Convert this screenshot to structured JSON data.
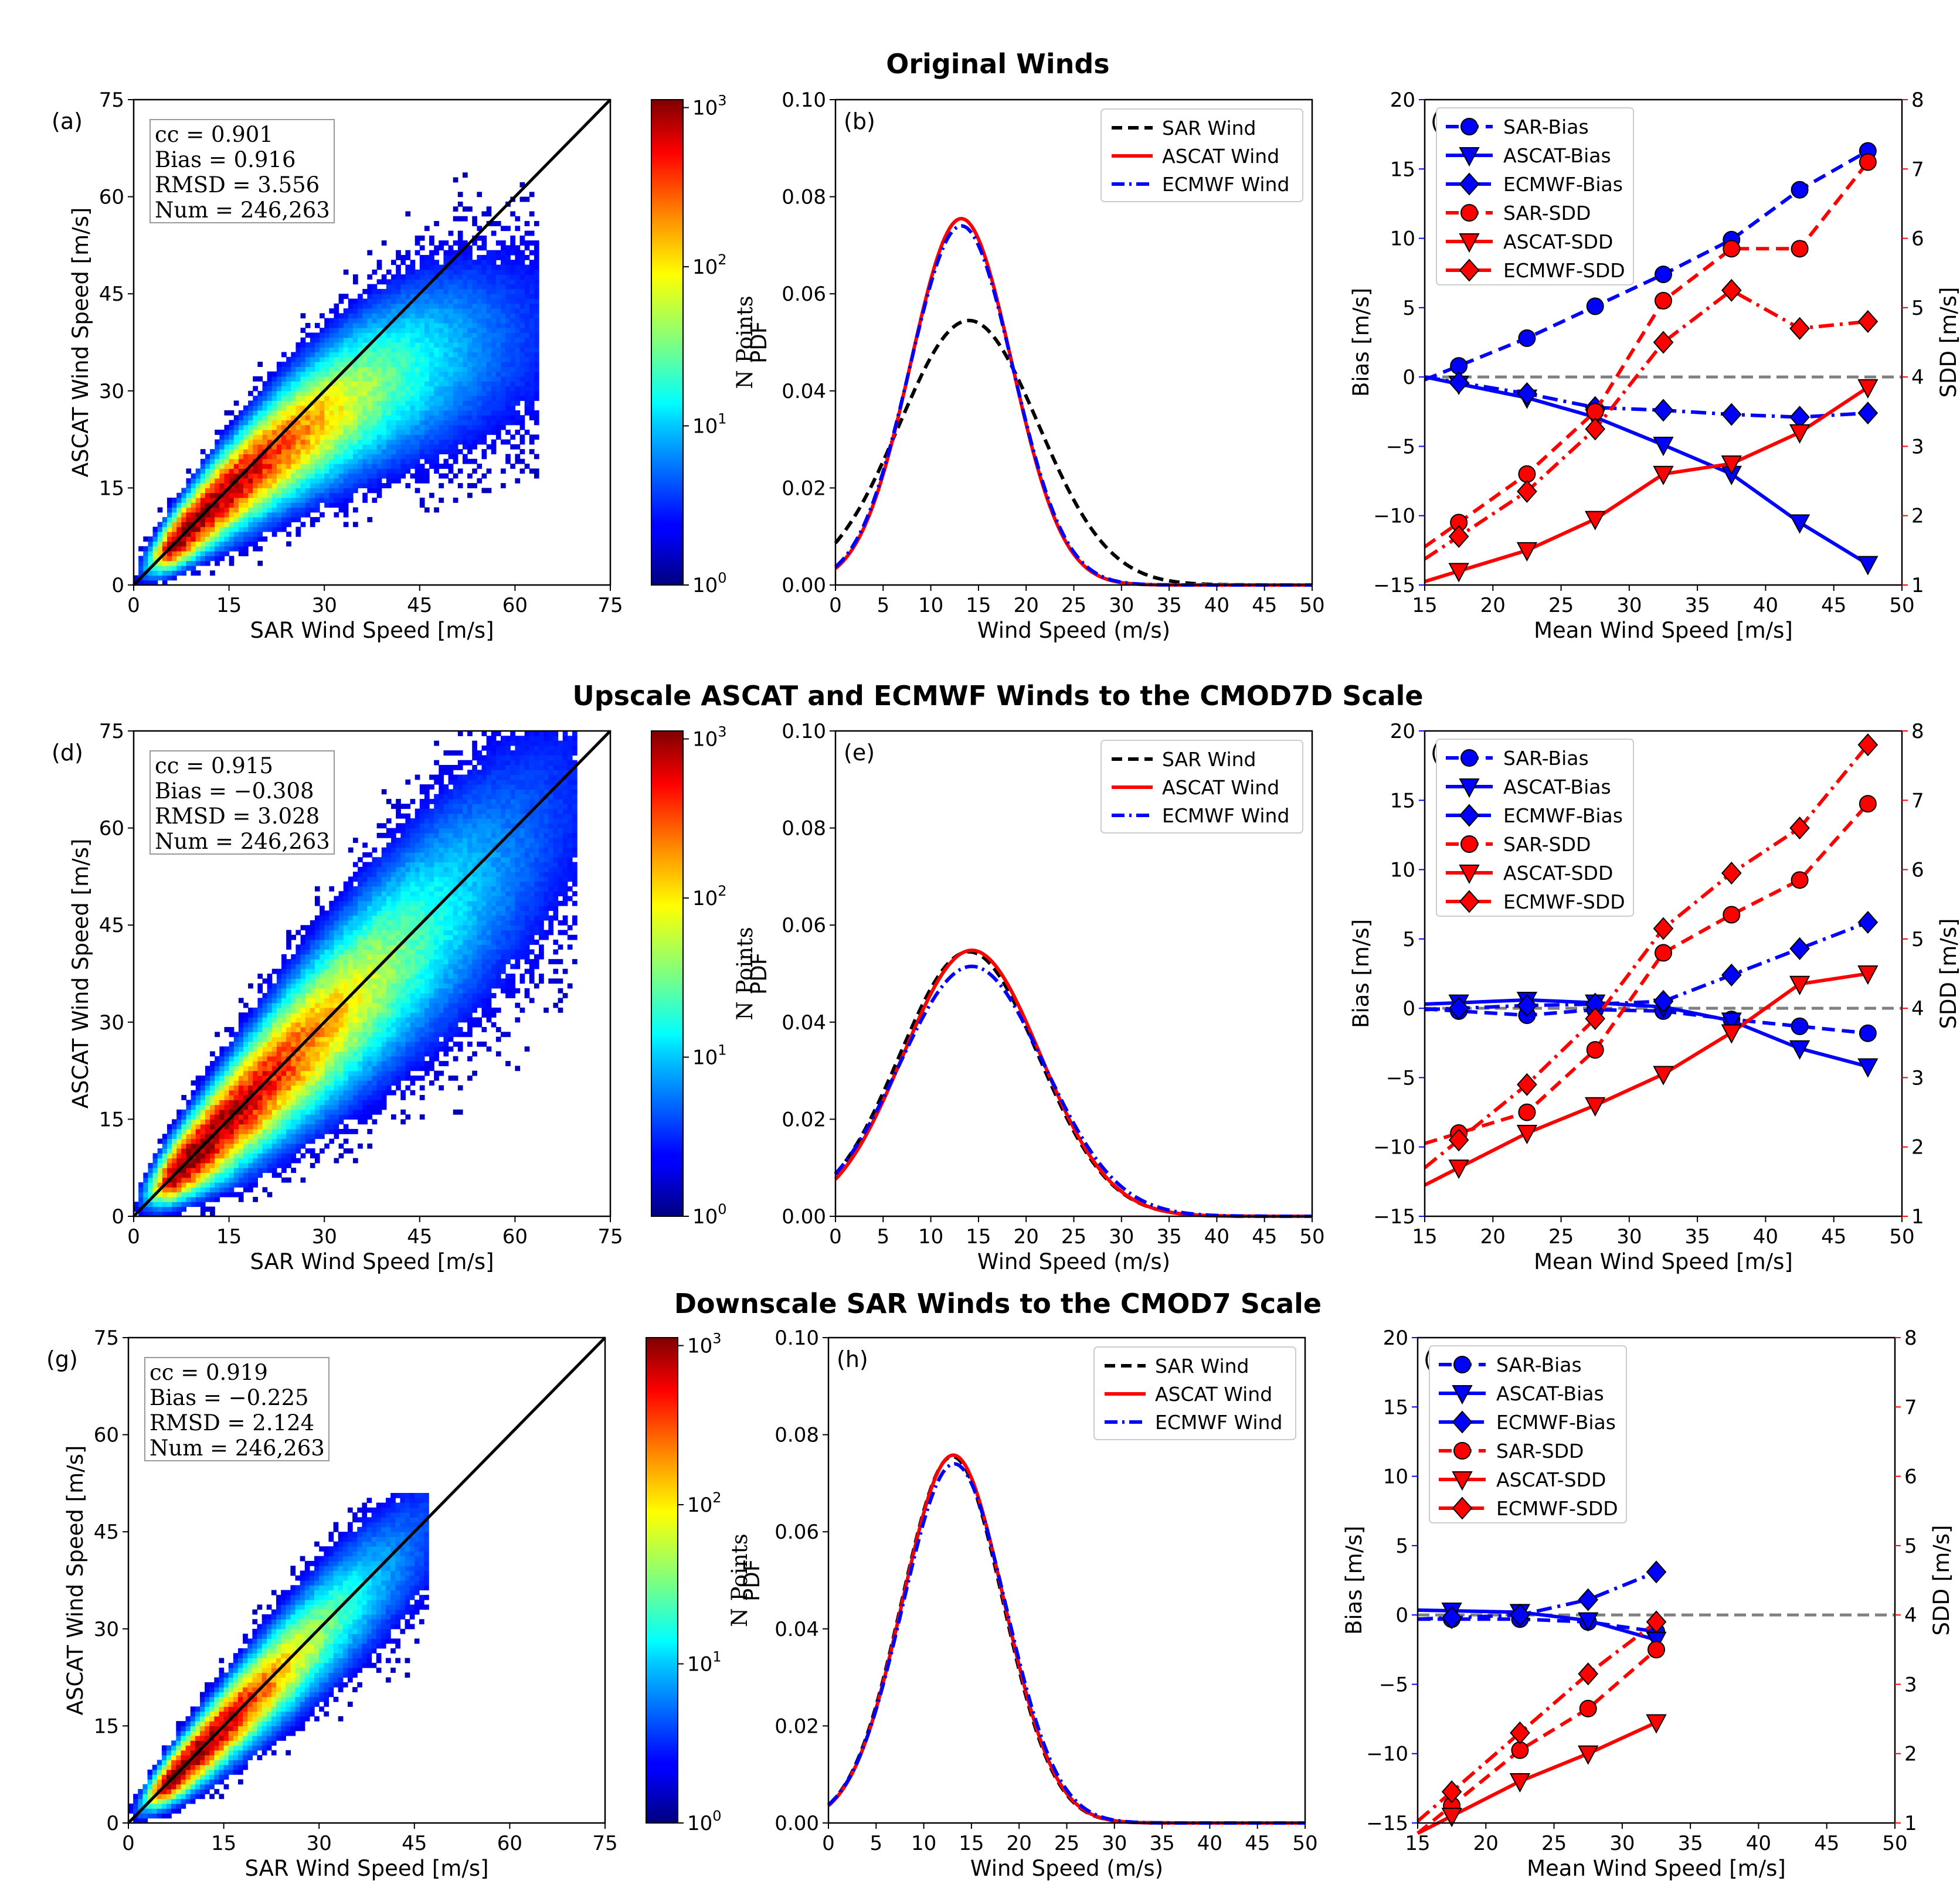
{
  "rows": [
    {
      "title": "Original Winds",
      "hist": {
        "panel": "(a)",
        "stats": [
          "cc = 0.901",
          "Bias = 0.916",
          "RMSD = 3.556",
          "Num = 246,263"
        ],
        "xlabel": "SAR Wind Speed [m/s]",
        "ylabel": "ASCAT Wind Speed [m/s]",
        "ticks": [
          "0",
          "15",
          "30",
          "45",
          "60",
          "75"
        ],
        "cb_label": "N Points",
        "cb_ticks": [
          "10^0",
          "10^1",
          "10^2",
          "10^3"
        ],
        "spread": 1.0,
        "bias_slope": 0.55,
        "extent": 64
      },
      "pdf": {
        "panel": "(b)",
        "legend": [
          "SAR Wind",
          "ASCAT Wind",
          "ECMWF Wind"
        ],
        "xlabel": "Wind Speed (m/s)",
        "ylabel": "PDF",
        "xticks": [
          "0",
          "5",
          "10",
          "15",
          "20",
          "25",
          "30",
          "35",
          "40",
          "45",
          "50"
        ],
        "yticks": [
          "0.00",
          "0.02",
          "0.04",
          "0.06",
          "0.08",
          "0.10"
        ],
        "curves": [
          {
            "name": "SAR Wind",
            "mu": 14.0,
            "sigma": 7.3,
            "peak": 0.0545,
            "color": "#000000",
            "dash": "18,10"
          },
          {
            "name": "ASCAT Wind",
            "mu": 13.2,
            "sigma": 5.3,
            "peak": 0.0755,
            "color": "#ff0000",
            "dash": ""
          },
          {
            "name": "ECMWF Wind",
            "mu": 13.2,
            "sigma": 5.4,
            "peak": 0.074,
            "color": "#0000ff",
            "dash": "22,8,4,8"
          }
        ]
      },
      "stat": {
        "panel": "(c)",
        "legend": [
          "SAR-Bias",
          "ASCAT-Bias",
          "ECMWF-Bias",
          "SAR-SDD",
          "ASCAT-SDD",
          "ECMWF-SDD"
        ],
        "xlabel": "Mean Wind Speed [m/s]",
        "ylabel_left": "Bias [m/s]",
        "ylabel_right": "SDD [m/s]",
        "xticks": [
          "15",
          "20",
          "25",
          "30",
          "35",
          "40",
          "45",
          "50"
        ],
        "yticks_left": [
          "−15",
          "−10",
          "−5",
          "0",
          "5",
          "10",
          "15",
          "20"
        ],
        "yticks_right": [
          "1",
          "2",
          "3",
          "4",
          "5",
          "6",
          "7",
          "8"
        ],
        "x": [
          17.5,
          22.5,
          27.5,
          32.5,
          37.5,
          42.5,
          47.5
        ],
        "sar_bias": [
          0.8,
          2.8,
          5.1,
          7.4,
          9.9,
          13.5,
          16.3
        ],
        "ascat_bias": [
          -0.5,
          -1.5,
          -2.9,
          -4.9,
          -7.0,
          -10.5,
          -13.5
        ],
        "ecmwf_bias": [
          -0.4,
          -1.2,
          -2.2,
          -2.4,
          -2.7,
          -2.9,
          -2.6
        ],
        "sar_sdd": [
          1.9,
          2.6,
          3.5,
          5.1,
          5.85,
          5.85,
          7.1
        ],
        "ascat_sdd": [
          1.2,
          1.5,
          1.95,
          2.6,
          2.75,
          3.2,
          3.85
        ],
        "ecmwf_sdd": [
          1.7,
          2.35,
          3.25,
          4.5,
          5.25,
          4.7,
          4.8
        ]
      }
    },
    {
      "title": "Upscale ASCAT and ECMWF Winds to the CMOD7D Scale",
      "hist": {
        "panel": "(d)",
        "stats": [
          "cc = 0.915",
          "Bias = −0.308",
          "RMSD = 3.028",
          "Num = 246,263"
        ],
        "xlabel": "SAR Wind Speed [m/s]",
        "ylabel": "ASCAT Wind Speed [m/s]",
        "ticks": [
          "0",
          "15",
          "30",
          "45",
          "60",
          "75"
        ],
        "cb_label": "N Points",
        "cb_ticks": [
          "10^0",
          "10^1",
          "10^2",
          "10^3"
        ],
        "spread": 1.2,
        "bias_slope": 0.92,
        "extent": 70
      },
      "pdf": {
        "panel": "(e)",
        "legend": [
          "SAR Wind",
          "ASCAT Wind",
          "ECMWF Wind"
        ],
        "xlabel": "Wind Speed (m/s)",
        "ylabel": "PDF",
        "xticks": [
          "0",
          "5",
          "10",
          "15",
          "20",
          "25",
          "30",
          "35",
          "40",
          "45",
          "50"
        ],
        "yticks": [
          "0.00",
          "0.02",
          "0.04",
          "0.06",
          "0.08",
          "0.10"
        ],
        "curves": [
          {
            "name": "SAR Wind",
            "mu": 14.0,
            "sigma": 7.3,
            "peak": 0.0545,
            "color": "#000000",
            "dash": "18,10"
          },
          {
            "name": "ASCAT Wind",
            "mu": 14.3,
            "sigma": 7.2,
            "peak": 0.0548,
            "color": "#ff0000",
            "dash": ""
          },
          {
            "name": "ECMWF Wind",
            "mu": 14.3,
            "sigma": 7.6,
            "peak": 0.0515,
            "color": "#0000ff",
            "dash": "22,8,4,8"
          }
        ]
      },
      "stat": {
        "panel": "(f)",
        "legend": [
          "SAR-Bias",
          "ASCAT-Bias",
          "ECMWF-Bias",
          "SAR-SDD",
          "ASCAT-SDD",
          "ECMWF-SDD"
        ],
        "xlabel": "Mean Wind Speed [m/s]",
        "ylabel_left": "Bias [m/s]",
        "ylabel_right": "SDD [m/s]",
        "xticks": [
          "15",
          "20",
          "25",
          "30",
          "35",
          "40",
          "45",
          "50"
        ],
        "yticks_left": [
          "−15",
          "−10",
          "−5",
          "0",
          "5",
          "10",
          "15",
          "20"
        ],
        "yticks_right": [
          "1",
          "2",
          "3",
          "4",
          "5",
          "6",
          "7",
          "8"
        ],
        "x": [
          17.5,
          22.5,
          27.5,
          32.5,
          37.5,
          42.5,
          47.5
        ],
        "sar_bias": [
          -0.2,
          -0.5,
          -0.1,
          -0.2,
          -0.8,
          -1.3,
          -1.8
        ],
        "ascat_bias": [
          0.4,
          0.6,
          0.4,
          0.1,
          -0.9,
          -2.9,
          -4.2
        ],
        "ecmwf_bias": [
          0.0,
          0.2,
          0.3,
          0.5,
          2.4,
          4.3,
          6.2
        ],
        "sar_sdd": [
          2.2,
          2.5,
          3.4,
          4.8,
          5.35,
          5.85,
          6.95
        ],
        "ascat_sdd": [
          1.7,
          2.2,
          2.6,
          3.05,
          3.65,
          4.35,
          4.5
        ],
        "ecmwf_sdd": [
          2.1,
          2.9,
          3.85,
          5.15,
          5.95,
          6.6,
          7.8
        ]
      }
    },
    {
      "title": "Downscale SAR Winds to the CMOD7 Scale",
      "hist": {
        "panel": "(g)",
        "stats": [
          "cc = 0.919",
          "Bias = −0.225",
          "RMSD = 2.124",
          "Num = 246,263"
        ],
        "xlabel": "SAR Wind Speed [m/s]",
        "ylabel": "ASCAT Wind Speed [m/s]",
        "ticks": [
          "0",
          "15",
          "30",
          "45",
          "60",
          "75"
        ],
        "cb_label": "N Points",
        "cb_ticks": [
          "10^0",
          "10^1",
          "10^2",
          "10^3"
        ],
        "spread": 0.85,
        "bias_slope": 0.92,
        "extent": 47
      },
      "pdf": {
        "panel": "(h)",
        "legend": [
          "SAR Wind",
          "ASCAT Wind",
          "ECMWF Wind"
        ],
        "xlabel": "Wind Speed (m/s)",
        "ylabel": "PDF",
        "xticks": [
          "0",
          "5",
          "10",
          "15",
          "20",
          "25",
          "30",
          "35",
          "40",
          "45",
          "50"
        ],
        "yticks": [
          "0.00",
          "0.02",
          "0.04",
          "0.06",
          "0.08",
          "0.10"
        ],
        "curves": [
          {
            "name": "SAR Wind",
            "mu": 13.0,
            "sigma": 5.3,
            "peak": 0.0755,
            "color": "#000000",
            "dash": "18,10"
          },
          {
            "name": "ASCAT Wind",
            "mu": 13.1,
            "sigma": 5.3,
            "peak": 0.0758,
            "color": "#ff0000",
            "dash": ""
          },
          {
            "name": "ECMWF Wind",
            "mu": 13.2,
            "sigma": 5.4,
            "peak": 0.074,
            "color": "#0000ff",
            "dash": "22,8,4,8"
          }
        ]
      },
      "stat": {
        "panel": "(i)",
        "legend": [
          "SAR-Bias",
          "ASCAT-Bias",
          "ECMWF-Bias",
          "SAR-SDD",
          "ASCAT-SDD",
          "ECMWF-SDD"
        ],
        "xlabel": "Mean Wind Speed [m/s]",
        "ylabel_left": "Bias [m/s]",
        "ylabel_right": "SDD [m/s]",
        "xticks": [
          "15",
          "20",
          "25",
          "30",
          "35",
          "40",
          "45",
          "50"
        ],
        "yticks_left": [
          "−15",
          "−10",
          "−5",
          "0",
          "5",
          "10",
          "15",
          "20"
        ],
        "yticks_right": [
          "1",
          "2",
          "3",
          "4",
          "5",
          "6",
          "7",
          "8"
        ],
        "x": [
          17.5,
          22.5,
          27.5,
          32.5
        ],
        "sar_bias": [
          -0.3,
          -0.3,
          -0.5,
          -1.2
        ],
        "ascat_bias": [
          0.3,
          0.2,
          -0.4,
          -1.8
        ],
        "ecmwf_bias": [
          -0.2,
          0.0,
          1.1,
          3.1
        ],
        "sar_sdd": [
          1.25,
          2.05,
          2.65,
          3.5
        ],
        "ascat_sdd": [
          1.1,
          1.6,
          2.0,
          2.45
        ],
        "ecmwf_sdd": [
          1.45,
          2.3,
          3.15,
          3.9
        ]
      }
    }
  ],
  "chart_data": [
    {
      "type": "heatmap",
      "panel": "(a)",
      "xlabel": "SAR Wind Speed [m/s]",
      "ylabel": "ASCAT Wind Speed [m/s]",
      "xlim": [
        0,
        75
      ],
      "ylim": [
        0,
        75
      ],
      "colorbar_label": "N Points",
      "colorbar_scale": "log",
      "colorbar_range": [
        1,
        1000
      ],
      "annotations": [
        "cc = 0.901",
        "Bias = 0.916",
        "RMSD = 3.556",
        "Num = 246,263"
      ]
    },
    {
      "type": "line",
      "panel": "(b)",
      "xlabel": "Wind Speed (m/s)",
      "ylabel": "PDF",
      "xlim": [
        0,
        50
      ],
      "ylim": [
        0,
        0.1
      ],
      "series": [
        {
          "name": "SAR Wind",
          "peak_x": 14,
          "peak_y": 0.0545
        },
        {
          "name": "ASCAT Wind",
          "peak_x": 13,
          "peak_y": 0.0755
        },
        {
          "name": "ECMWF Wind",
          "peak_x": 13,
          "peak_y": 0.074
        }
      ]
    },
    {
      "type": "line",
      "panel": "(c)",
      "xlabel": "Mean Wind Speed [m/s]",
      "ylabel": "Bias [m/s]",
      "y2label": "SDD [m/s]",
      "xlim": [
        15,
        50
      ],
      "ylim": [
        -15,
        20
      ],
      "y2lim": [
        1,
        8
      ],
      "x": [
        17.5,
        22.5,
        27.5,
        32.5,
        37.5,
        42.5,
        47.5
      ],
      "series": [
        {
          "name": "SAR-Bias",
          "values": [
            0.8,
            2.8,
            5.1,
            7.4,
            9.9,
            13.5,
            16.3
          ]
        },
        {
          "name": "ASCAT-Bias",
          "values": [
            -0.5,
            -1.5,
            -2.9,
            -4.9,
            -7.0,
            -10.5,
            -13.5
          ]
        },
        {
          "name": "ECMWF-Bias",
          "values": [
            -0.4,
            -1.2,
            -2.2,
            -2.4,
            -2.7,
            -2.9,
            -2.6
          ]
        },
        {
          "name": "SAR-SDD",
          "values": [
            1.9,
            2.6,
            3.5,
            5.1,
            5.85,
            5.85,
            7.1
          ]
        },
        {
          "name": "ASCAT-SDD",
          "values": [
            1.2,
            1.5,
            1.95,
            2.6,
            2.75,
            3.2,
            3.85
          ]
        },
        {
          "name": "ECMWF-SDD",
          "values": [
            1.7,
            2.35,
            3.25,
            4.5,
            5.25,
            4.7,
            4.8
          ]
        }
      ]
    },
    {
      "type": "heatmap",
      "panel": "(d)",
      "xlabel": "SAR Wind Speed [m/s]",
      "ylabel": "ASCAT Wind Speed [m/s]",
      "xlim": [
        0,
        75
      ],
      "ylim": [
        0,
        75
      ],
      "colorbar_label": "N Points",
      "colorbar_scale": "log",
      "colorbar_range": [
        1,
        1000
      ],
      "annotations": [
        "cc = 0.915",
        "Bias = −0.308",
        "RMSD = 3.028",
        "Num = 246,263"
      ]
    },
    {
      "type": "line",
      "panel": "(e)",
      "xlabel": "Wind Speed (m/s)",
      "ylabel": "PDF",
      "xlim": [
        0,
        50
      ],
      "ylim": [
        0,
        0.1
      ],
      "series": [
        {
          "name": "SAR Wind",
          "peak_x": 14,
          "peak_y": 0.0545
        },
        {
          "name": "ASCAT Wind",
          "peak_x": 14.3,
          "peak_y": 0.0548
        },
        {
          "name": "ECMWF Wind",
          "peak_x": 14.3,
          "peak_y": 0.0515
        }
      ]
    },
    {
      "type": "line",
      "panel": "(f)",
      "xlabel": "Mean Wind Speed [m/s]",
      "ylabel": "Bias [m/s]",
      "y2label": "SDD [m/s]",
      "xlim": [
        15,
        50
      ],
      "ylim": [
        -15,
        20
      ],
      "y2lim": [
        1,
        8
      ],
      "x": [
        17.5,
        22.5,
        27.5,
        32.5,
        37.5,
        42.5,
        47.5
      ],
      "series": [
        {
          "name": "SAR-Bias",
          "values": [
            -0.2,
            -0.5,
            -0.1,
            -0.2,
            -0.8,
            -1.3,
            -1.8
          ]
        },
        {
          "name": "ASCAT-Bias",
          "values": [
            0.4,
            0.6,
            0.4,
            0.1,
            -0.9,
            -2.9,
            -4.2
          ]
        },
        {
          "name": "ECMWF-Bias",
          "values": [
            0.0,
            0.2,
            0.3,
            0.5,
            2.4,
            4.3,
            6.2
          ]
        },
        {
          "name": "SAR-SDD",
          "values": [
            2.2,
            2.5,
            3.4,
            4.8,
            5.35,
            5.85,
            6.95
          ]
        },
        {
          "name": "ASCAT-SDD",
          "values": [
            1.7,
            2.2,
            2.6,
            3.05,
            3.65,
            4.35,
            4.5
          ]
        },
        {
          "name": "ECMWF-SDD",
          "values": [
            2.1,
            2.9,
            3.85,
            5.15,
            5.95,
            6.6,
            7.8
          ]
        }
      ]
    },
    {
      "type": "heatmap",
      "panel": "(g)",
      "xlabel": "SAR Wind Speed [m/s]",
      "ylabel": "ASCAT Wind Speed [m/s]",
      "xlim": [
        0,
        75
      ],
      "ylim": [
        0,
        75
      ],
      "colorbar_label": "N Points",
      "colorbar_scale": "log",
      "colorbar_range": [
        1,
        1000
      ],
      "annotations": [
        "cc = 0.919",
        "Bias = −0.225",
        "RMSD = 2.124",
        "Num = 246,263"
      ]
    },
    {
      "type": "line",
      "panel": "(h)",
      "xlabel": "Wind Speed (m/s)",
      "ylabel": "PDF",
      "xlim": [
        0,
        50
      ],
      "ylim": [
        0,
        0.1
      ],
      "series": [
        {
          "name": "SAR Wind",
          "peak_x": 13,
          "peak_y": 0.0755
        },
        {
          "name": "ASCAT Wind",
          "peak_x": 13,
          "peak_y": 0.0758
        },
        {
          "name": "ECMWF Wind",
          "peak_x": 13,
          "peak_y": 0.074
        }
      ]
    },
    {
      "type": "line",
      "panel": "(i)",
      "xlabel": "Mean Wind Speed [m/s]",
      "ylabel": "Bias [m/s]",
      "y2label": "SDD [m/s]",
      "xlim": [
        15,
        50
      ],
      "ylim": [
        -15,
        20
      ],
      "y2lim": [
        1,
        8
      ],
      "x": [
        17.5,
        22.5,
        27.5,
        32.5
      ],
      "series": [
        {
          "name": "SAR-Bias",
          "values": [
            -0.3,
            -0.3,
            -0.5,
            -1.2
          ]
        },
        {
          "name": "ASCAT-Bias",
          "values": [
            0.3,
            0.2,
            -0.4,
            -1.8
          ]
        },
        {
          "name": "ECMWF-Bias",
          "values": [
            -0.2,
            0.0,
            1.1,
            3.1
          ]
        },
        {
          "name": "SAR-SDD",
          "values": [
            1.25,
            2.05,
            2.65,
            3.5
          ]
        },
        {
          "name": "ASCAT-SDD",
          "values": [
            1.1,
            1.6,
            2.0,
            2.45
          ]
        },
        {
          "name": "ECMWF-SDD",
          "values": [
            1.45,
            2.3,
            3.15,
            3.9
          ]
        }
      ]
    }
  ]
}
